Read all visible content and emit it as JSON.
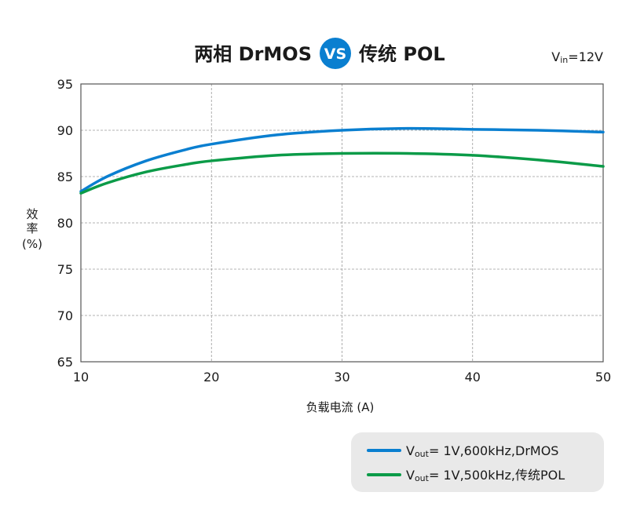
{
  "chart_data": {
    "type": "line",
    "title": {
      "part1": "两相 DrMOS",
      "vs": "VS",
      "part2": "传统 POL"
    },
    "condition": {
      "main": "V",
      "sub": "in",
      "rest": "=12V"
    },
    "xlabel": "负载电流 (A)",
    "ylabel": {
      "line1": "效",
      "line2": "率",
      "line3": "(%)"
    },
    "xlim": [
      10,
      50
    ],
    "ylim": [
      65,
      95
    ],
    "xticks": [
      10,
      20,
      30,
      40,
      50
    ],
    "yticks": [
      65,
      70,
      75,
      80,
      85,
      90,
      95
    ],
    "grid": true,
    "legend_position": "bottom-right",
    "series": [
      {
        "name": {
          "main": "V",
          "sub": "out",
          "rest": "= 1V,600kHz,DrMOS"
        },
        "color": "#0a7fd0",
        "x": [
          10,
          12,
          15,
          18,
          20,
          25,
          30,
          35,
          40,
          45,
          50
        ],
        "y": [
          83.4,
          85.0,
          86.7,
          87.9,
          88.5,
          89.5,
          90.0,
          90.2,
          90.1,
          90.0,
          89.8
        ]
      },
      {
        "name": {
          "main": "V",
          "sub": "out",
          "rest": "= 1V,500kHz,传统POL"
        },
        "color": "#0b9b48",
        "x": [
          10,
          12,
          15,
          18,
          20,
          25,
          30,
          35,
          40,
          45,
          50
        ],
        "y": [
          83.2,
          84.3,
          85.5,
          86.3,
          86.7,
          87.3,
          87.5,
          87.5,
          87.3,
          86.8,
          86.1
        ]
      }
    ]
  }
}
